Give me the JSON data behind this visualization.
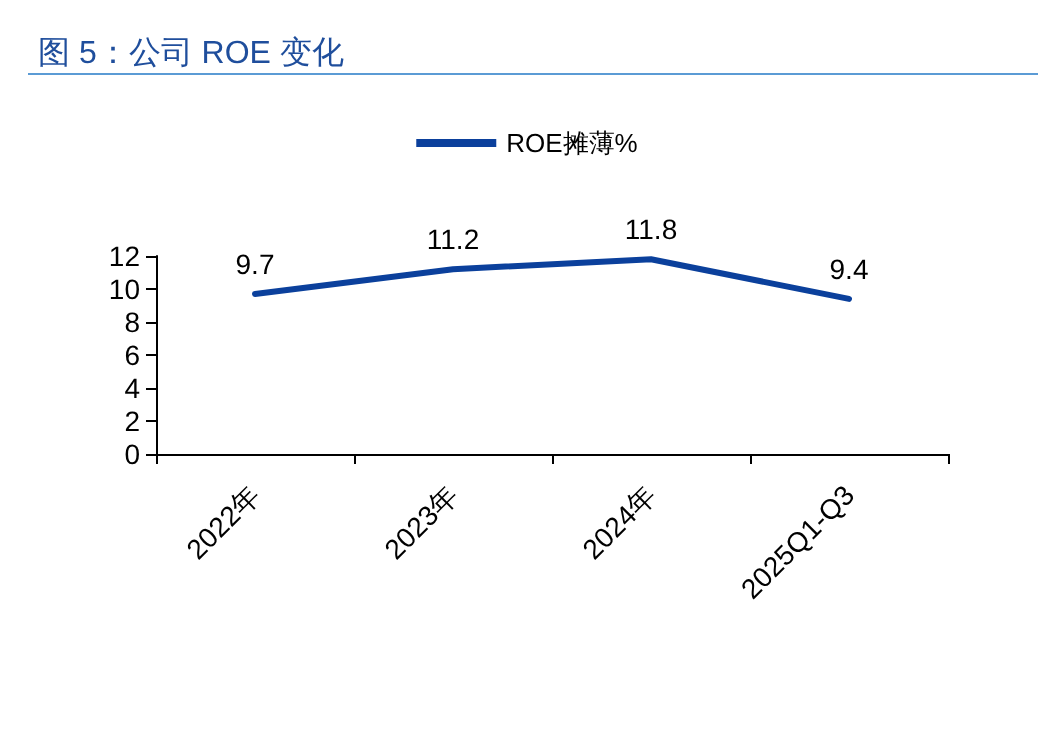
{
  "chart_data": {
    "type": "line",
    "title": "图 5：公司 ROE 变化",
    "categories": [
      "2022年",
      "2023年",
      "2024年",
      "2025Q1-Q3"
    ],
    "series": [
      {
        "name": "ROE摊薄%",
        "color": "#0b409c",
        "values": [
          9.7,
          11.2,
          11.8,
          9.4
        ]
      }
    ],
    "ylim": [
      0,
      12
    ],
    "yticks": [
      0,
      2,
      4,
      6,
      8,
      10,
      12
    ],
    "data_labels": true,
    "legend": "top",
    "grid": false,
    "marker": "none",
    "line_style": "solid"
  }
}
